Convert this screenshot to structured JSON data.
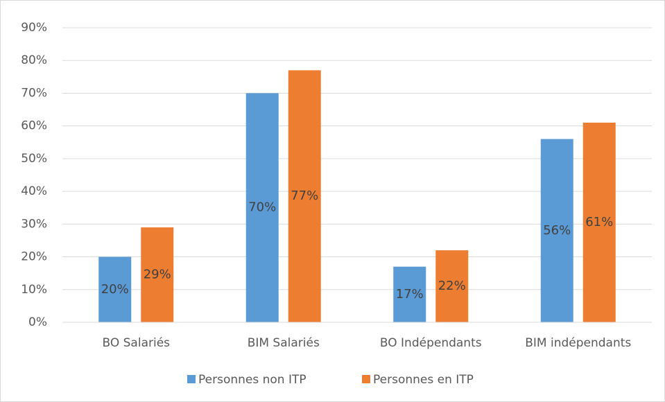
{
  "chart_data": {
    "type": "bar",
    "categories": [
      "BO Salariés",
      "BIM Salariés",
      "BO Indépendants",
      "BIM indépendants"
    ],
    "series": [
      {
        "name": "Personnes non ITP",
        "color": "#5b9bd5",
        "values": [
          20,
          70,
          17,
          56
        ],
        "value_labels": [
          "20%",
          "70%",
          "17%",
          "56%"
        ]
      },
      {
        "name": "Personnes en ITP",
        "color": "#ed7d31",
        "values": [
          29,
          77,
          22,
          61
        ],
        "value_labels": [
          "29%",
          "77%",
          "22%",
          "61%"
        ]
      }
    ],
    "ylim": [
      0,
      90
    ],
    "yticks": [
      {
        "value": 0,
        "label": "0%"
      },
      {
        "value": 10,
        "label": "10%"
      },
      {
        "value": 20,
        "label": "20%"
      },
      {
        "value": 30,
        "label": "30%"
      },
      {
        "value": 40,
        "label": "40%"
      },
      {
        "value": 50,
        "label": "50%"
      },
      {
        "value": 60,
        "label": "60%"
      },
      {
        "value": 70,
        "label": "70%"
      },
      {
        "value": 80,
        "label": "80%"
      },
      {
        "value": 90,
        "label": "90%"
      }
    ],
    "grid": true,
    "legend": "bottom"
  }
}
